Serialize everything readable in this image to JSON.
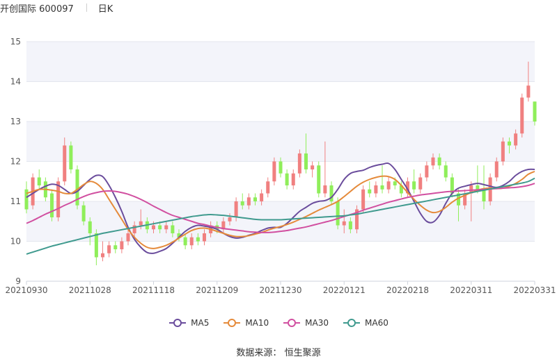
{
  "header": {
    "stock_name": "开创国际 600097",
    "period_label": "日K"
  },
  "source": {
    "label": "数据来源：",
    "value": "恒生聚源"
  },
  "chart_data": {
    "type": "candlestick",
    "title": "开创国际 600097",
    "period": "日K",
    "ylim": [
      9,
      15
    ],
    "yticks": [
      9,
      10,
      11,
      12,
      13,
      14,
      15
    ],
    "x_tick_labels": [
      "20210930",
      "20211028",
      "20211118",
      "20211209",
      "20211230",
      "20220121",
      "20220218",
      "20220311",
      "20220331"
    ],
    "x_tick_indices": [
      0,
      10,
      20,
      30,
      40,
      50,
      60,
      70,
      80
    ],
    "n_days": 81,
    "colors": {
      "up": "#f08080",
      "down": "#8fee5a",
      "MA5": "#6a4c9c",
      "MA10": "#e58a3a",
      "MA30": "#d14fa0",
      "MA60": "#3f9a8e"
    },
    "candles": [
      [
        11.3,
        10.8,
        11.5,
        10.7
      ],
      [
        10.9,
        11.6,
        11.7,
        10.8
      ],
      [
        11.6,
        11.4,
        11.8,
        11.3
      ],
      [
        11.5,
        11.1,
        11.6,
        11.0
      ],
      [
        11.2,
        10.6,
        11.3,
        10.5
      ],
      [
        10.6,
        11.5,
        11.6,
        10.5
      ],
      [
        11.5,
        12.4,
        12.6,
        11.4
      ],
      [
        12.4,
        11.8,
        12.5,
        11.7
      ],
      [
        11.8,
        10.9,
        11.9,
        10.8
      ],
      [
        10.9,
        10.5,
        11.0,
        10.4
      ],
      [
        10.5,
        10.2,
        10.6,
        9.9
      ],
      [
        10.2,
        9.6,
        10.3,
        9.4
      ],
      [
        9.6,
        9.7,
        10.0,
        9.5
      ],
      [
        9.7,
        9.9,
        10.0,
        9.6
      ],
      [
        9.9,
        9.8,
        10.0,
        9.7
      ],
      [
        9.8,
        10.0,
        10.1,
        9.7
      ],
      [
        10.0,
        10.2,
        10.3,
        9.9
      ],
      [
        10.2,
        10.4,
        10.5,
        10.1
      ],
      [
        10.4,
        10.5,
        10.8,
        10.3
      ],
      [
        10.5,
        10.3,
        10.6,
        10.2
      ],
      [
        10.3,
        10.4,
        10.5,
        10.2
      ],
      [
        10.4,
        10.3,
        10.5,
        10.2
      ],
      [
        10.3,
        10.4,
        10.5,
        10.2
      ],
      [
        10.4,
        10.2,
        10.5,
        10.1
      ],
      [
        10.2,
        10.1,
        10.3,
        10.0
      ],
      [
        10.1,
        9.9,
        10.2,
        9.8
      ],
      [
        9.9,
        10.1,
        10.2,
        9.8
      ],
      [
        10.1,
        10.0,
        10.2,
        9.9
      ],
      [
        10.0,
        10.2,
        10.3,
        9.9
      ],
      [
        10.2,
        10.4,
        10.5,
        10.1
      ],
      [
        10.4,
        10.3,
        10.5,
        10.2
      ],
      [
        10.3,
        10.5,
        10.6,
        10.2
      ],
      [
        10.5,
        10.6,
        10.7,
        10.4
      ],
      [
        10.6,
        11.0,
        11.1,
        10.5
      ],
      [
        11.0,
        10.9,
        11.2,
        10.8
      ],
      [
        10.9,
        11.1,
        11.2,
        10.8
      ],
      [
        11.1,
        11.0,
        11.2,
        10.9
      ],
      [
        11.0,
        11.2,
        11.3,
        10.9
      ],
      [
        11.2,
        11.5,
        11.6,
        11.1
      ],
      [
        11.5,
        12.0,
        12.1,
        11.4
      ],
      [
        12.0,
        11.7,
        12.1,
        11.6
      ],
      [
        11.7,
        11.4,
        11.8,
        11.3
      ],
      [
        11.4,
        11.7,
        11.8,
        11.3
      ],
      [
        11.7,
        12.2,
        12.3,
        11.6
      ],
      [
        12.2,
        11.8,
        12.7,
        11.7
      ],
      [
        11.8,
        11.9,
        12.0,
        11.6
      ],
      [
        11.9,
        11.2,
        12.0,
        11.1
      ],
      [
        11.2,
        11.4,
        12.5,
        11.1
      ],
      [
        11.4,
        11.0,
        11.5,
        10.9
      ],
      [
        11.0,
        10.4,
        11.1,
        10.3
      ],
      [
        10.4,
        10.5,
        10.8,
        10.2
      ],
      [
        10.5,
        10.3,
        10.6,
        10.2
      ],
      [
        10.3,
        10.8,
        10.9,
        10.2
      ],
      [
        10.8,
        11.3,
        11.4,
        10.7
      ],
      [
        11.3,
        11.2,
        11.5,
        11.1
      ],
      [
        11.2,
        11.4,
        11.5,
        11.1
      ],
      [
        11.4,
        11.3,
        11.9,
        11.2
      ],
      [
        11.3,
        11.5,
        11.6,
        11.2
      ],
      [
        11.5,
        11.4,
        11.6,
        11.3
      ],
      [
        11.4,
        11.2,
        11.5,
        11.1
      ],
      [
        11.2,
        11.5,
        11.6,
        11.1
      ],
      [
        11.5,
        11.3,
        11.8,
        11.2
      ],
      [
        11.3,
        11.6,
        11.7,
        11.2
      ],
      [
        11.6,
        11.9,
        12.0,
        11.5
      ],
      [
        11.9,
        12.1,
        12.2,
        11.8
      ],
      [
        12.1,
        11.9,
        12.2,
        11.8
      ],
      [
        11.9,
        11.6,
        12.0,
        11.5
      ],
      [
        11.6,
        11.2,
        11.7,
        11.1
      ],
      [
        11.2,
        10.9,
        11.3,
        10.5
      ],
      [
        10.9,
        11.2,
        11.3,
        10.8
      ],
      [
        11.2,
        11.4,
        11.5,
        10.5
      ],
      [
        11.4,
        11.3,
        11.9,
        11.2
      ],
      [
        11.3,
        11.0,
        11.9,
        10.8
      ],
      [
        11.0,
        11.6,
        11.7,
        10.9
      ],
      [
        11.6,
        12.0,
        12.1,
        11.5
      ],
      [
        12.0,
        12.5,
        12.6,
        11.9
      ],
      [
        12.5,
        12.4,
        12.6,
        12.2
      ],
      [
        12.4,
        12.7,
        12.8,
        12.3
      ],
      [
        12.7,
        13.6,
        13.7,
        12.6
      ],
      [
        13.6,
        13.9,
        14.5,
        13.5
      ],
      [
        13.5,
        13.0,
        13.5,
        12.9
      ]
    ],
    "series": [
      {
        "name": "MA5",
        "values": [
          11.1,
          11.2,
          11.3,
          11.38,
          11.43,
          11.4,
          11.3,
          11.2,
          11.25,
          11.4,
          11.55,
          11.65,
          11.62,
          11.4,
          11.1,
          10.75,
          10.35,
          10.05,
          9.85,
          9.72,
          9.7,
          9.75,
          9.82,
          9.95,
          10.1,
          10.25,
          10.35,
          10.4,
          10.38,
          10.35,
          10.3,
          10.2,
          10.12,
          10.08,
          10.1,
          10.15,
          10.2,
          10.27,
          10.33,
          10.35,
          10.35,
          10.45,
          10.6,
          10.75,
          10.85,
          10.95,
          11.0,
          11.02,
          11.1,
          11.3,
          11.55,
          11.7,
          11.75,
          11.78,
          11.85,
          11.9,
          11.93,
          11.95,
          11.8,
          11.55,
          11.3,
          11.0,
          10.7,
          10.5,
          10.48,
          10.65,
          10.95,
          11.2,
          11.33,
          11.38,
          11.42,
          11.45,
          11.42,
          11.38,
          11.35,
          11.4,
          11.5,
          11.65,
          11.75,
          11.8,
          11.8
        ]
      },
      {
        "name": "MA10",
        "values": [
          11.2,
          11.25,
          11.3,
          11.3,
          11.28,
          11.25,
          11.2,
          11.2,
          11.3,
          11.42,
          11.5,
          11.45,
          11.3,
          11.05,
          10.8,
          10.55,
          10.3,
          10.1,
          9.95,
          9.85,
          9.82,
          9.85,
          9.9,
          9.98,
          10.08,
          10.18,
          10.27,
          10.32,
          10.33,
          10.3,
          10.25,
          10.2,
          10.15,
          10.12,
          10.12,
          10.14,
          10.18,
          10.22,
          10.28,
          10.33,
          10.37,
          10.42,
          10.48,
          10.55,
          10.62,
          10.7,
          10.78,
          10.85,
          10.92,
          11.0,
          11.12,
          11.25,
          11.38,
          11.48,
          11.55,
          11.6,
          11.63,
          11.62,
          11.55,
          11.4,
          11.22,
          11.05,
          10.9,
          10.78,
          10.72,
          10.75,
          10.85,
          10.98,
          11.08,
          11.15,
          11.22,
          11.28,
          11.32,
          11.33,
          11.32,
          11.33,
          11.38,
          11.45,
          11.55,
          11.68,
          11.75
        ]
      },
      {
        "name": "MA30",
        "values": [
          10.45,
          10.52,
          10.6,
          10.68,
          10.75,
          10.82,
          10.9,
          10.97,
          11.05,
          11.12,
          11.18,
          11.22,
          11.25,
          11.26,
          11.25,
          11.22,
          11.18,
          11.12,
          11.05,
          10.97,
          10.88,
          10.8,
          10.72,
          10.65,
          10.6,
          10.55,
          10.5,
          10.45,
          10.42,
          10.38,
          10.35,
          10.32,
          10.3,
          10.28,
          10.26,
          10.24,
          10.23,
          10.22,
          10.22,
          10.23,
          10.25,
          10.27,
          10.3,
          10.33,
          10.36,
          10.4,
          10.44,
          10.48,
          10.52,
          10.57,
          10.62,
          10.67,
          10.72,
          10.78,
          10.83,
          10.88,
          10.93,
          10.98,
          11.02,
          11.06,
          11.1,
          11.13,
          11.16,
          11.18,
          11.2,
          11.22,
          11.24,
          11.25,
          11.26,
          11.27,
          11.28,
          11.29,
          11.3,
          11.31,
          11.32,
          11.33,
          11.34,
          11.35,
          11.37,
          11.4,
          11.45
        ]
      },
      {
        "name": "MA60",
        "values": [
          9.68,
          9.73,
          9.78,
          9.83,
          9.88,
          9.92,
          9.96,
          10.0,
          10.04,
          10.08,
          10.12,
          10.16,
          10.2,
          10.23,
          10.26,
          10.29,
          10.32,
          10.35,
          10.38,
          10.41,
          10.44,
          10.47,
          10.5,
          10.53,
          10.56,
          10.59,
          10.62,
          10.64,
          10.66,
          10.67,
          10.66,
          10.65,
          10.63,
          10.61,
          10.59,
          10.57,
          10.55,
          10.54,
          10.54,
          10.54,
          10.54,
          10.55,
          10.56,
          10.57,
          10.58,
          10.59,
          10.6,
          10.61,
          10.62,
          10.63,
          10.64,
          10.66,
          10.68,
          10.71,
          10.74,
          10.77,
          10.8,
          10.83,
          10.86,
          10.89,
          10.92,
          10.95,
          10.98,
          11.01,
          11.04,
          11.07,
          11.1,
          11.13,
          11.16,
          11.19,
          11.22,
          11.25,
          11.28,
          11.31,
          11.34,
          11.37,
          11.4,
          11.43,
          11.46,
          11.5,
          11.58
        ]
      }
    ]
  },
  "legend": {
    "items": [
      "MA5",
      "MA10",
      "MA30",
      "MA60"
    ]
  }
}
